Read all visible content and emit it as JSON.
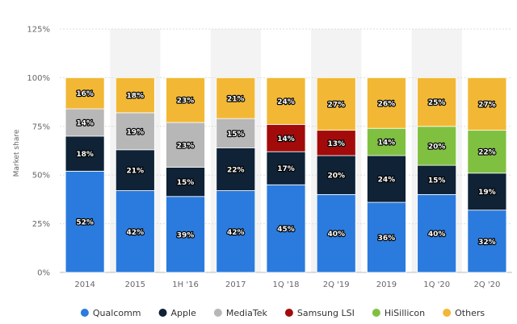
{
  "chart_data": {
    "type": "bar",
    "stacked": true,
    "ylabel": "Market share",
    "ylim": [
      0,
      125
    ],
    "yticks": [
      0,
      25,
      50,
      75,
      100,
      125
    ],
    "ytick_labels": [
      "0%",
      "25%",
      "50%",
      "75%",
      "100%",
      "125%"
    ],
    "categories": [
      "2014",
      "2015",
      "1H '16",
      "2017",
      "1Q '18",
      "2Q '19",
      "2019",
      "1Q '20",
      "2Q '20"
    ],
    "series": [
      {
        "name": "Qualcomm",
        "color": "#2b7bde",
        "values": [
          52,
          42,
          39,
          42,
          45,
          40,
          36,
          40,
          32
        ]
      },
      {
        "name": "Apple",
        "color": "#0f2236",
        "values": [
          18,
          21,
          15,
          22,
          17,
          20,
          24,
          15,
          19
        ]
      },
      {
        "name": "MediaTek",
        "color": "#b7b7b7",
        "values": [
          14,
          19,
          23,
          15,
          0,
          0,
          0,
          0,
          0
        ]
      },
      {
        "name": "Samsung LSI",
        "color": "#a30b0b",
        "values": [
          0,
          0,
          0,
          0,
          14,
          13,
          0,
          0,
          0
        ]
      },
      {
        "name": "HiSillicon",
        "color": "#80c041",
        "values": [
          0,
          0,
          0,
          0,
          0,
          0,
          14,
          20,
          22
        ]
      },
      {
        "name": "Others",
        "color": "#f2b835",
        "values": [
          16,
          18,
          23,
          21,
          24,
          27,
          26,
          25,
          27
        ]
      }
    ],
    "data_labels": [
      [
        "52%",
        "42%",
        "39%",
        "42%",
        "45%",
        "40%",
        "36%",
        "40%",
        "32%"
      ],
      [
        "18%",
        "21%",
        "15%",
        "22%",
        "17%",
        "20%",
        "24%",
        "15%",
        "19%"
      ],
      [
        "14%",
        "19%",
        "23%",
        "15%",
        "",
        "",
        "",
        "",
        ""
      ],
      [
        "",
        "",
        "",
        "",
        "14%",
        "13%",
        "",
        "",
        ""
      ],
      [
        "",
        "",
        "",
        "",
        "",
        "",
        "14%",
        "20%",
        "22%"
      ],
      [
        "16%",
        "18%",
        "23%",
        "21%",
        "24%",
        "27%",
        "26%",
        "25%",
        "27%"
      ]
    ],
    "legend_position": "bottom"
  }
}
